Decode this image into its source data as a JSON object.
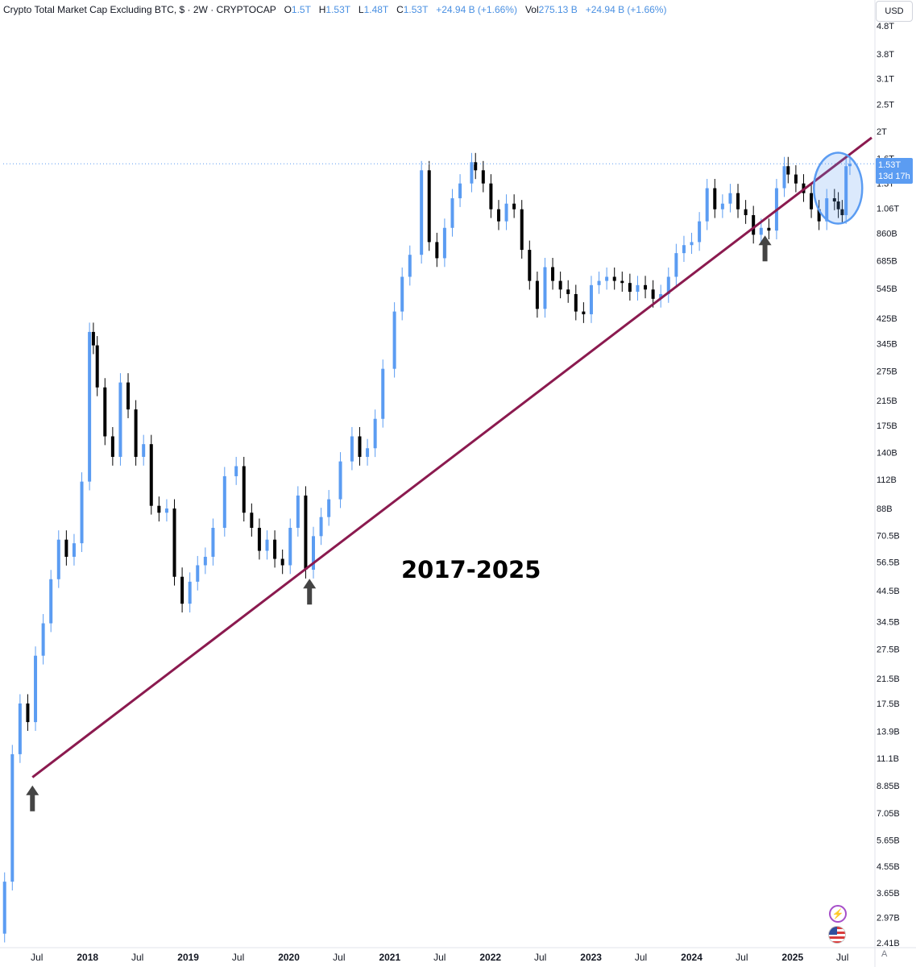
{
  "header": {
    "title": "Crypto Total Market Cap Excluding BTC, $ · 2W · CRYPTOCAP",
    "o_label": "O",
    "o_value": "1.5T",
    "h_label": "H",
    "h_value": "1.53T",
    "l_label": "L",
    "l_value": "1.48T",
    "c_label": "C",
    "c_value": "1.53T",
    "change": "+24.94 B (+1.66%)",
    "vol_label": "Vol",
    "vol_value": "275.13 B",
    "vol_change": "+24.94 B (+1.66%)"
  },
  "currency": "USD",
  "price_tag": {
    "price": "1.53T",
    "countdown": "13d 17h"
  },
  "annotation_text": "2017-2025",
  "auto_scale_label": "A",
  "icons": {
    "events": "lightning-icon",
    "flag": "us-flag-icon"
  },
  "colors": {
    "up": "#5b9cf2",
    "down": "#000000",
    "trendline": "#8b1a4f",
    "highlight_circle": "#5b9cf2",
    "arrow": "#444444"
  },
  "chart_data": {
    "type": "candlestick",
    "scale": "log",
    "interval": "2W",
    "ylim": [
      2410000000.0,
      4800000000000.0
    ],
    "y_ticks": [
      {
        "value": 4800000000000.0,
        "label": "4.8T"
      },
      {
        "value": 3800000000000.0,
        "label": "3.8T"
      },
      {
        "value": 3100000000000.0,
        "label": "3.1T"
      },
      {
        "value": 2500000000000.0,
        "label": "2.5T"
      },
      {
        "value": 2000000000000.0,
        "label": "2T"
      },
      {
        "value": 1600000000000.0,
        "label": "1.6T"
      },
      {
        "value": 1300000000000.0,
        "label": "1.3T"
      },
      {
        "value": 1060000000000.0,
        "label": "1.06T"
      },
      {
        "value": 860000000000.0,
        "label": "860B"
      },
      {
        "value": 685000000000.0,
        "label": "685B"
      },
      {
        "value": 545000000000.0,
        "label": "545B"
      },
      {
        "value": 425000000000.0,
        "label": "425B"
      },
      {
        "value": 345000000000.0,
        "label": "345B"
      },
      {
        "value": 275000000000.0,
        "label": "275B"
      },
      {
        "value": 215000000000.0,
        "label": "215B"
      },
      {
        "value": 175000000000.0,
        "label": "175B"
      },
      {
        "value": 140000000000.0,
        "label": "140B"
      },
      {
        "value": 112000000000.0,
        "label": "112B"
      },
      {
        "value": 88000000000.0,
        "label": "88B"
      },
      {
        "value": 70500000000.0,
        "label": "70.5B"
      },
      {
        "value": 56500000000.0,
        "label": "56.5B"
      },
      {
        "value": 44500000000.0,
        "label": "44.5B"
      },
      {
        "value": 34500000000.0,
        "label": "34.5B"
      },
      {
        "value": 27500000000.0,
        "label": "27.5B"
      },
      {
        "value": 21500000000.0,
        "label": "21.5B"
      },
      {
        "value": 17500000000.0,
        "label": "17.5B"
      },
      {
        "value": 13900000000.0,
        "label": "13.9B"
      },
      {
        "value": 11100000000.0,
        "label": "11.1B"
      },
      {
        "value": 8850000000.0,
        "label": "8.85B"
      },
      {
        "value": 7050000000.0,
        "label": "7.05B"
      },
      {
        "value": 5650000000.0,
        "label": "5.65B"
      },
      {
        "value": 4550000000.0,
        "label": "4.55B"
      },
      {
        "value": 3650000000.0,
        "label": "3.65B"
      },
      {
        "value": 2970000000.0,
        "label": "2.97B"
      },
      {
        "value": 2410000000.0,
        "label": "2.41B"
      }
    ],
    "x_ticks": [
      {
        "date": "2017-07-01",
        "label": "Jul"
      },
      {
        "date": "2018-01-01",
        "label": "2018"
      },
      {
        "date": "2018-07-01",
        "label": "Jul"
      },
      {
        "date": "2019-01-01",
        "label": "2019"
      },
      {
        "date": "2019-07-01",
        "label": "Jul"
      },
      {
        "date": "2020-01-01",
        "label": "2020"
      },
      {
        "date": "2020-07-01",
        "label": "Jul"
      },
      {
        "date": "2021-01-01",
        "label": "2021"
      },
      {
        "date": "2021-07-01",
        "label": "Jul"
      },
      {
        "date": "2022-01-01",
        "label": "2022"
      },
      {
        "date": "2022-07-01",
        "label": "Jul"
      },
      {
        "date": "2023-01-01",
        "label": "2023"
      },
      {
        "date": "2023-07-01",
        "label": "Jul"
      },
      {
        "date": "2024-01-01",
        "label": "2024"
      },
      {
        "date": "2024-07-01",
        "label": "Jul"
      },
      {
        "date": "2025-01-01",
        "label": "2025"
      },
      {
        "date": "2025-07-01",
        "label": "Jul"
      }
    ],
    "xlim": [
      "2017-03-01",
      "2025-10-15"
    ],
    "series": [
      {
        "candles_approx": [
          [
            "2017-03-06",
            2600000000.0,
            4000000000.0
          ],
          [
            "2017-04-03",
            4000000000.0,
            11500000000.0
          ],
          [
            "2017-05-01",
            11500000000.0,
            17500000000.0
          ],
          [
            "2017-05-29",
            17500000000.0,
            15000000000.0
          ],
          [
            "2017-06-26",
            15000000000.0,
            26000000000.0
          ],
          [
            "2017-07-24",
            26000000000.0,
            34000000000.0
          ],
          [
            "2017-08-21",
            34000000000.0,
            49000000000.0
          ],
          [
            "2017-09-18",
            49000000000.0,
            68000000000.0
          ],
          [
            "2017-10-16",
            68000000000.0,
            59000000000.0
          ],
          [
            "2017-11-13",
            59000000000.0,
            66000000000.0
          ],
          [
            "2017-12-11",
            66000000000.0,
            110000000000.0
          ],
          [
            "2018-01-08",
            110000000000.0,
            380000000000.0
          ],
          [
            "2018-01-22",
            380000000000.0,
            340000000000.0
          ],
          [
            "2018-02-05",
            340000000000.0,
            240000000000.0
          ],
          [
            "2018-03-05",
            240000000000.0,
            160000000000.0
          ],
          [
            "2018-04-02",
            160000000000.0,
            135000000000.0
          ],
          [
            "2018-04-30",
            135000000000.0,
            250000000000.0
          ],
          [
            "2018-05-28",
            250000000000.0,
            200000000000.0
          ],
          [
            "2018-06-25",
            200000000000.0,
            135000000000.0
          ],
          [
            "2018-07-23",
            135000000000.0,
            150000000000.0
          ],
          [
            "2018-08-20",
            150000000000.0,
            90000000000.0
          ],
          [
            "2018-09-17",
            90000000000.0,
            85000000000.0
          ],
          [
            "2018-10-15",
            85000000000.0,
            88000000000.0
          ],
          [
            "2018-11-12",
            88000000000.0,
            50000000000.0
          ],
          [
            "2018-12-10",
            50000000000.0,
            40000000000.0
          ],
          [
            "2019-01-07",
            40000000000.0,
            48000000000.0
          ],
          [
            "2019-02-04",
            48000000000.0,
            55000000000.0
          ],
          [
            "2019-03-04",
            55000000000.0,
            59000000000.0
          ],
          [
            "2019-04-01",
            59000000000.0,
            75000000000.0
          ],
          [
            "2019-05-13",
            75000000000.0,
            115000000000.0
          ],
          [
            "2019-06-24",
            115000000000.0,
            125000000000.0
          ],
          [
            "2019-07-22",
            125000000000.0,
            85000000000.0
          ],
          [
            "2019-08-19",
            85000000000.0,
            75000000000.0
          ],
          [
            "2019-09-16",
            75000000000.0,
            62000000000.0
          ],
          [
            "2019-10-14",
            62000000000.0,
            68000000000.0
          ],
          [
            "2019-11-11",
            68000000000.0,
            58000000000.0
          ],
          [
            "2019-12-09",
            58000000000.0,
            55000000000.0
          ],
          [
            "2020-01-06",
            55000000000.0,
            75000000000.0
          ],
          [
            "2020-02-03",
            75000000000.0,
            98000000000.0
          ],
          [
            "2020-03-02",
            98000000000.0,
            53000000000.0
          ],
          [
            "2020-03-30",
            53000000000.0,
            70000000000.0
          ],
          [
            "2020-04-27",
            70000000000.0,
            82000000000.0
          ],
          [
            "2020-05-25",
            82000000000.0,
            95000000000.0
          ],
          [
            "2020-07-06",
            95000000000.0,
            130000000000.0
          ],
          [
            "2020-08-17",
            130000000000.0,
            160000000000.0
          ],
          [
            "2020-09-14",
            160000000000.0,
            135000000000.0
          ],
          [
            "2020-10-12",
            135000000000.0,
            145000000000.0
          ],
          [
            "2020-11-09",
            145000000000.0,
            185000000000.0
          ],
          [
            "2020-12-07",
            185000000000.0,
            280000000000.0
          ],
          [
            "2021-01-18",
            280000000000.0,
            450000000000.0
          ],
          [
            "2021-02-15",
            450000000000.0,
            600000000000.0
          ],
          [
            "2021-03-15",
            600000000000.0,
            720000000000.0
          ],
          [
            "2021-04-26",
            720000000000.0,
            1450000000000.0
          ],
          [
            "2021-05-24",
            1450000000000.0,
            800000000000.0
          ],
          [
            "2021-06-21",
            800000000000.0,
            700000000000.0
          ],
          [
            "2021-07-19",
            700000000000.0,
            900000000000.0
          ],
          [
            "2021-08-16",
            900000000000.0,
            1150000000000.0
          ],
          [
            "2021-09-13",
            1150000000000.0,
            1300000000000.0
          ],
          [
            "2021-10-25",
            1300000000000.0,
            1550000000000.0
          ],
          [
            "2021-11-08",
            1550000000000.0,
            1450000000000.0
          ],
          [
            "2021-12-06",
            1450000000000.0,
            1300000000000.0
          ],
          [
            "2022-01-03",
            1300000000000.0,
            1050000000000.0
          ],
          [
            "2022-01-31",
            1050000000000.0,
            950000000000.0
          ],
          [
            "2022-02-28",
            950000000000.0,
            1100000000000.0
          ],
          [
            "2022-03-28",
            1100000000000.0,
            1050000000000.0
          ],
          [
            "2022-04-25",
            1050000000000.0,
            750000000000.0
          ],
          [
            "2022-05-23",
            750000000000.0,
            580000000000.0
          ],
          [
            "2022-06-20",
            580000000000.0,
            460000000000.0
          ],
          [
            "2022-07-18",
            460000000000.0,
            650000000000.0
          ],
          [
            "2022-08-15",
            650000000000.0,
            580000000000.0
          ],
          [
            "2022-09-12",
            580000000000.0,
            540000000000.0
          ],
          [
            "2022-10-10",
            540000000000.0,
            520000000000.0
          ],
          [
            "2022-11-07",
            520000000000.0,
            450000000000.0
          ],
          [
            "2022-12-05",
            450000000000.0,
            440000000000.0
          ],
          [
            "2023-01-02",
            440000000000.0,
            560000000000.0
          ],
          [
            "2023-01-30",
            560000000000.0,
            580000000000.0
          ],
          [
            "2023-02-27",
            580000000000.0,
            600000000000.0
          ],
          [
            "2023-03-27",
            600000000000.0,
            580000000000.0
          ],
          [
            "2023-04-24",
            580000000000.0,
            570000000000.0
          ],
          [
            "2023-05-22",
            570000000000.0,
            530000000000.0
          ],
          [
            "2023-06-19",
            530000000000.0,
            560000000000.0
          ],
          [
            "2023-07-17",
            560000000000.0,
            540000000000.0
          ],
          [
            "2023-08-14",
            540000000000.0,
            500000000000.0
          ],
          [
            "2023-09-11",
            500000000000.0,
            520000000000.0
          ],
          [
            "2023-10-09",
            520000000000.0,
            600000000000.0
          ],
          [
            "2023-11-06",
            600000000000.0,
            730000000000.0
          ],
          [
            "2023-12-04",
            730000000000.0,
            780000000000.0
          ],
          [
            "2024-01-01",
            780000000000.0,
            800000000000.0
          ],
          [
            "2024-01-29",
            800000000000.0,
            950000000000.0
          ],
          [
            "2024-02-26",
            950000000000.0,
            1250000000000.0
          ],
          [
            "2024-03-25",
            1250000000000.0,
            1050000000000.0
          ],
          [
            "2024-04-22",
            1050000000000.0,
            1100000000000.0
          ],
          [
            "2024-05-20",
            1100000000000.0,
            1200000000000.0
          ],
          [
            "2024-06-17",
            1200000000000.0,
            1050000000000.0
          ],
          [
            "2024-07-15",
            1050000000000.0,
            1000000000000.0
          ],
          [
            "2024-08-12",
            1000000000000.0,
            850000000000.0
          ],
          [
            "2024-09-09",
            850000000000.0,
            900000000000.0
          ],
          [
            "2024-10-07",
            900000000000.0,
            880000000000.0
          ],
          [
            "2024-11-04",
            880000000000.0,
            1250000000000.0
          ],
          [
            "2024-12-02",
            1250000000000.0,
            1500000000000.0
          ],
          [
            "2024-12-16",
            1500000000000.0,
            1400000000000.0
          ],
          [
            "2025-01-13",
            1400000000000.0,
            1300000000000.0
          ],
          [
            "2025-02-10",
            1300000000000.0,
            1200000000000.0
          ],
          [
            "2025-03-10",
            1200000000000.0,
            1050000000000.0
          ],
          [
            "2025-04-07",
            1050000000000.0,
            950000000000.0
          ],
          [
            "2025-05-05",
            950000000000.0,
            1150000000000.0
          ],
          [
            "2025-06-02",
            1150000000000.0,
            1120000000000.0
          ],
          [
            "2025-06-16",
            1120000000000.0,
            1050000000000.0
          ],
          [
            "2025-06-30",
            1050000000000.0,
            1000000000000.0
          ],
          [
            "2025-07-14",
            1000000000000.0,
            1500000000000.0
          ],
          [
            "2025-07-28",
            1500000000000.0,
            1530000000000.0
          ]
        ]
      }
    ],
    "last_price_line": 1530000000000.0,
    "trendline": {
      "from": [
        "2017-06-15",
        9500000000.0
      ],
      "to": [
        "2025-10-15",
        1900000000000.0
      ]
    },
    "annotations": [
      {
        "type": "arrow-up",
        "date": "2017-06-15",
        "value": 8300000000.0
      },
      {
        "type": "arrow-up",
        "date": "2020-03-16",
        "value": 46000000000.0
      },
      {
        "type": "arrow-up",
        "date": "2024-09-23",
        "value": 790000000000.0
      },
      {
        "type": "ellipse",
        "date": "2025-06-15",
        "value": 1250000000000.0
      }
    ]
  }
}
